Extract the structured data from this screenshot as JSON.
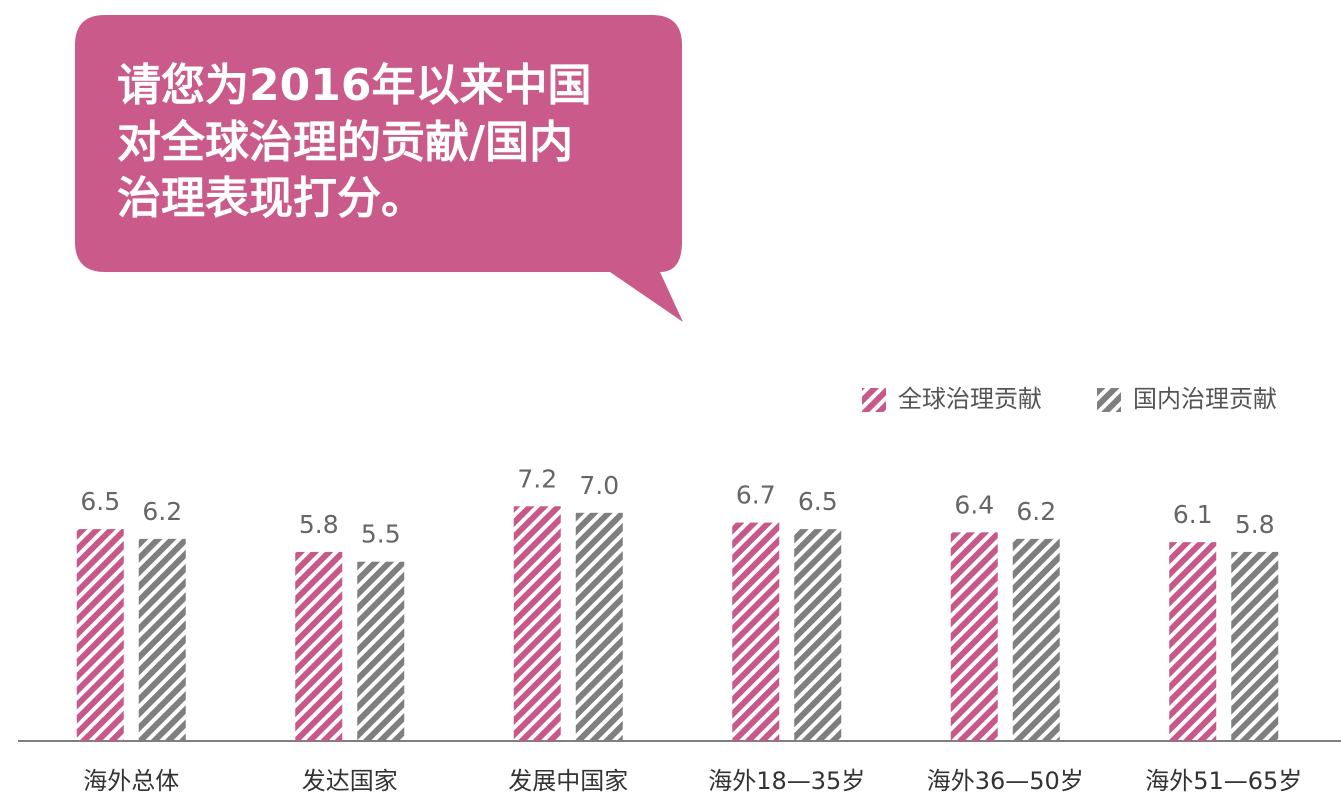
{
  "chart_data": {
    "type": "bar",
    "title_lines": [
      "请您为2016年以来中国",
      "对全球治理的贡献/国内",
      "治理表现打分。"
    ],
    "categories": [
      "海外总体",
      "发达国家",
      "发展中国家",
      "海外18—35岁",
      "海外36—50岁",
      "海外51—65岁"
    ],
    "series": [
      {
        "name": "全球治理贡献",
        "color": "#c9588a",
        "values": [
          6.5,
          5.8,
          7.2,
          6.7,
          6.4,
          6.1
        ],
        "value_labels": [
          "6.5",
          "5.8",
          "7.2",
          "6.7",
          "6.4",
          "6.1"
        ]
      },
      {
        "name": "国内治理贡献",
        "color": "#7f7f80",
        "values": [
          6.2,
          5.5,
          7.0,
          6.5,
          6.2,
          5.8
        ],
        "value_labels": [
          "6.2",
          "5.5",
          "7.0",
          "6.5",
          "6.2",
          "5.8"
        ]
      }
    ],
    "legend": "top-right"
  }
}
